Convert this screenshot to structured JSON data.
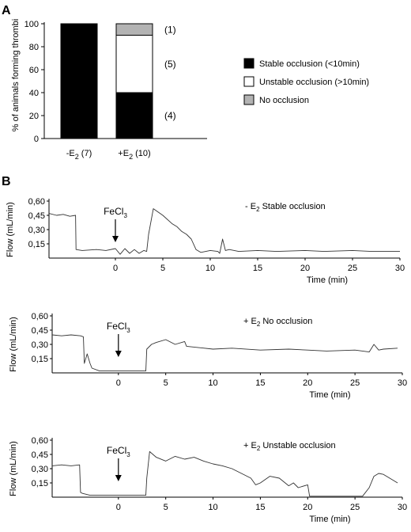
{
  "panel_a": {
    "label": "A",
    "ylabel": "% of animals forming thrombi",
    "legend": [
      {
        "label": "Stable occlusion (<10min)",
        "color": "#000000"
      },
      {
        "label": "Unstable occlusion (>10min)",
        "color": "#ffffff"
      },
      {
        "label": "No occlusion",
        "color": "#b3b3b3"
      }
    ]
  },
  "panel_b": {
    "label": "B",
    "traces": [
      {
        "title": "- E2 Stable occlusion",
        "marker": "FeCl3"
      },
      {
        "title": "+ E2 No occlusion",
        "marker": "FeCl3"
      },
      {
        "title": "+ E2 Unstable occlusion",
        "marker": "FeCl3"
      }
    ]
  },
  "chart_data": [
    {
      "type": "bar",
      "stacked": true,
      "title": "",
      "ylabel": "% of animals forming thrombi",
      "ylim": [
        0,
        100
      ],
      "yticks": [
        0,
        20,
        40,
        60,
        80,
        100
      ],
      "categories": [
        {
          "prefix": "-E",
          "sub": "2",
          "suffix": " (7)"
        },
        {
          "prefix": "+E",
          "sub": "2",
          "suffix": " (10)"
        }
      ],
      "series": [
        {
          "name": "Stable occlusion (<10min)",
          "color": "#000000",
          "values": [
            100,
            40
          ]
        },
        {
          "name": "Unstable occlusion (>10min)",
          "color": "#ffffff",
          "values": [
            0,
            50
          ]
        },
        {
          "name": "No occlusion",
          "color": "#b3b3b3",
          "values": [
            0,
            10
          ]
        }
      ],
      "segment_labels": [
        "(4)",
        "(5)",
        "(1)"
      ],
      "legend_position": "right"
    },
    {
      "type": "line",
      "title": "- E2 Stable occlusion",
      "xlabel": "Time (min)",
      "ylabel": "Flow (mL/min)",
      "xlim": [
        -7,
        30
      ],
      "ylim": [
        0,
        0.6
      ],
      "xticks": [
        0,
        5,
        10,
        15,
        20,
        25,
        30
      ],
      "yticks": [
        "0,15",
        "0,30",
        "0,45",
        "0,60"
      ],
      "annotation": {
        "text": "FeCl",
        "sub": "3",
        "x": 0
      },
      "x": [
        -7,
        -6.2,
        -5.5,
        -4.8,
        -4.2,
        -4.15,
        -3.5,
        -2,
        -1,
        0,
        0.5,
        1,
        1.5,
        2,
        2.5,
        3,
        3.3,
        3.5,
        4,
        5,
        6,
        6.5,
        7,
        7.5,
        8,
        8.5,
        9,
        10,
        10.8,
        11,
        11.3,
        11.6,
        12,
        13,
        15,
        17,
        20,
        22,
        25,
        27,
        30
      ],
      "y": [
        0.47,
        0.45,
        0.46,
        0.44,
        0.45,
        0.09,
        0.08,
        0.09,
        0.08,
        0.1,
        0.04,
        0.1,
        0.05,
        0.09,
        0.05,
        0.08,
        0.07,
        0.25,
        0.52,
        0.45,
        0.36,
        0.33,
        0.28,
        0.25,
        0.2,
        0.09,
        0.06,
        0.08,
        0.07,
        0.05,
        0.2,
        0.08,
        0.09,
        0.07,
        0.08,
        0.07,
        0.08,
        0.07,
        0.08,
        0.07,
        0.07
      ]
    },
    {
      "type": "line",
      "title": "+ E2 No occlusion",
      "xlabel": "Time (min)",
      "ylabel": "Flow (mL/min)",
      "xlim": [
        -7,
        30
      ],
      "ylim": [
        0,
        0.6
      ],
      "xticks": [
        0,
        5,
        10,
        15,
        20,
        25,
        30
      ],
      "yticks": [
        "0,15",
        "0,30",
        "0,45",
        "0,60"
      ],
      "annotation": {
        "text": "FeCl",
        "sub": "3",
        "x": 0
      },
      "x": [
        -7,
        -6,
        -5,
        -4,
        -3.7,
        -3.6,
        -3.3,
        -3.0,
        -2.8,
        -2,
        0,
        1,
        2,
        2.9,
        3,
        3.5,
        4,
        5,
        6,
        7,
        7.2,
        10,
        12,
        15,
        18,
        20,
        22,
        25,
        26.5,
        27,
        27.5,
        28,
        29.5
      ],
      "y": [
        0.4,
        0.39,
        0.4,
        0.39,
        0.38,
        0.1,
        0.2,
        0.1,
        0.05,
        0.02,
        0.02,
        0.02,
        0.02,
        0.02,
        0.25,
        0.3,
        0.32,
        0.35,
        0.3,
        0.33,
        0.28,
        0.25,
        0.26,
        0.24,
        0.25,
        0.24,
        0.23,
        0.24,
        0.22,
        0.3,
        0.24,
        0.25,
        0.26
      ]
    },
    {
      "type": "line",
      "title": "+ E2 Unstable occlusion",
      "xlabel": "Time (min)",
      "ylabel": "Flow (mL/min)",
      "xlim": [
        -7,
        30
      ],
      "ylim": [
        0,
        0.6
      ],
      "xticks": [
        0,
        5,
        10,
        15,
        20,
        25,
        30
      ],
      "yticks": [
        "0,15",
        "0,30",
        "0,45",
        "0,60"
      ],
      "annotation": {
        "text": "FeCl",
        "sub": "3",
        "x": 0
      },
      "x": [
        -7,
        -6,
        -5,
        -4.1,
        -4.0,
        -3.8,
        -3,
        -1,
        0,
        1,
        2,
        2.9,
        3.0,
        3.3,
        4,
        5,
        6,
        7,
        8,
        9,
        10,
        11,
        12,
        13,
        14,
        14.5,
        15,
        16,
        17,
        18,
        18.5,
        19,
        20,
        20.2,
        22,
        24,
        25.8,
        26.5,
        27,
        27.5,
        28,
        29,
        29.5
      ],
      "y": [
        0.33,
        0.34,
        0.33,
        0.34,
        0.05,
        0.04,
        0.02,
        0.02,
        0.02,
        0.02,
        0.02,
        0.02,
        0.2,
        0.48,
        0.42,
        0.38,
        0.43,
        0.4,
        0.42,
        0.38,
        0.35,
        0.33,
        0.3,
        0.25,
        0.2,
        0.13,
        0.15,
        0.22,
        0.2,
        0.12,
        0.15,
        0.1,
        0.13,
        0.01,
        0.01,
        0.01,
        0.01,
        0.1,
        0.22,
        0.25,
        0.24,
        0.18,
        0.15
      ]
    }
  ]
}
